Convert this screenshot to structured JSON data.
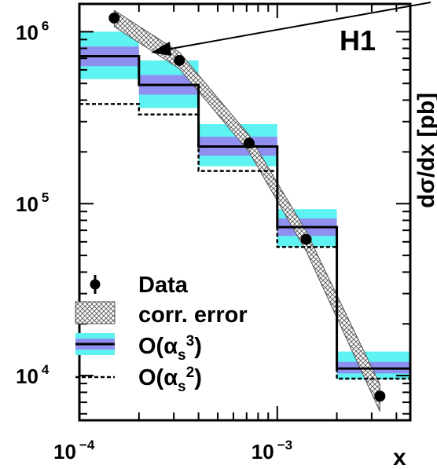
{
  "chart_data": {
    "type": "line",
    "experiment_label": "H1",
    "ylabel": "dσ/dx [pb]",
    "xlabel": "x",
    "x_scale": "log",
    "y_scale": "log",
    "xlim": [
      0.0001,
      0.0047
    ],
    "ylim": [
      5500,
      1450000
    ],
    "x_ticks": [
      {
        "base": "10",
        "exp": "−4",
        "value": 0.0001
      },
      {
        "base": "10",
        "exp": "−3",
        "value": 0.001
      }
    ],
    "y_ticks": [
      {
        "base": "10",
        "exp": "6",
        "value": 1000000
      },
      {
        "base": "10",
        "exp": "5",
        "value": 100000
      },
      {
        "base": "10",
        "exp": "4",
        "value": 10000
      }
    ],
    "bin_edges": [
      0.0001,
      0.0002,
      0.0004,
      0.001,
      0.002,
      0.0047
    ],
    "series": [
      {
        "name": "Data",
        "style": "points",
        "x": [
          0.00015,
          0.00032,
          0.00072,
          0.0014,
          0.0033
        ],
        "values": [
          1200000,
          680000,
          225000,
          62000,
          7600
        ]
      },
      {
        "name": "O(αs³)",
        "style": "histogram",
        "values": [
          720000,
          490000,
          215000,
          73000,
          11000
        ],
        "band_outer": [
          [
            530000,
            1000000
          ],
          [
            360000,
            680000
          ],
          [
            165000,
            290000
          ],
          [
            56000,
            93000
          ],
          [
            9500,
            13800
          ]
        ],
        "band_inner": [
          [
            630000,
            820000
          ],
          [
            430000,
            560000
          ],
          [
            190000,
            245000
          ],
          [
            65000,
            82000
          ],
          [
            10300,
            12000
          ]
        ]
      },
      {
        "name": "O(αs²)",
        "style": "dashed-histogram",
        "values": [
          380000,
          330000,
          155000,
          56000,
          9600
        ]
      },
      {
        "name": "corr. error",
        "style": "hatched-band",
        "x": [
          0.00015,
          0.00032,
          0.00072,
          0.0014,
          0.0033
        ],
        "low": [
          1070000,
          610000,
          200000,
          53000,
          6200
        ],
        "high": [
          1330000,
          760000,
          250000,
          69000,
          8900
        ]
      }
    ],
    "legend": {
      "placement": "bottom-left",
      "entries": [
        {
          "label": "Data",
          "sub": "",
          "sup": ""
        },
        {
          "label": "corr. error",
          "sub": "",
          "sup": ""
        },
        {
          "prefix": "O(α",
          "sub": "s",
          "sup": "3",
          "suffix": ")"
        },
        {
          "prefix": "O(α",
          "sub": "s",
          "sup": "2",
          "suffix": ")"
        }
      ]
    },
    "colors": {
      "band_outer": "#5ef2f2",
      "band_inner": "#8f8ff0",
      "line": "#000000",
      "axis": "#000000"
    }
  }
}
